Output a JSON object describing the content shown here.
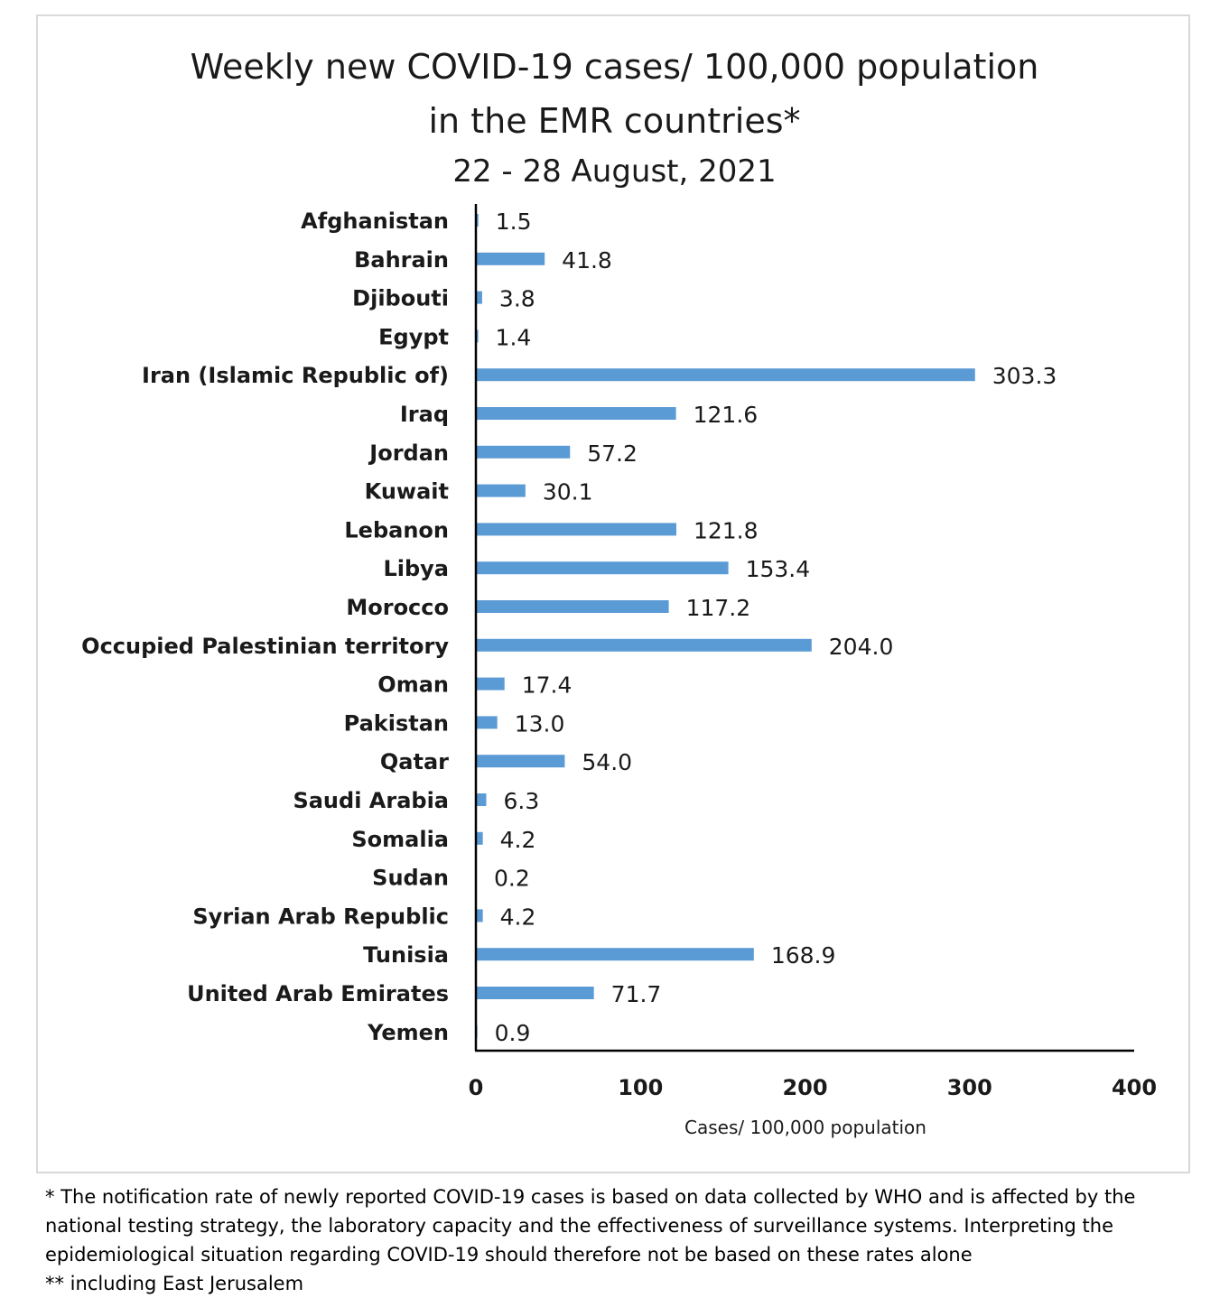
{
  "chart_data": {
    "type": "bar",
    "orientation": "horizontal",
    "title": "Weekly new COVID-19 cases/ 100,000 population",
    "title_line2": "in the EMR countries*",
    "subtitle": "22 - 28 August, 2021",
    "xlabel": "Cases/ 100,000 population",
    "ylabel": "",
    "xlim": [
      0,
      400
    ],
    "xticks": [
      "0",
      "100",
      "200",
      "300",
      "400"
    ],
    "bar_color": "#5b9bd5",
    "grid": false,
    "categories": [
      "Afghanistan",
      "Bahrain",
      "Djibouti",
      "Egypt",
      "Iran (Islamic Republic of)",
      "Iraq",
      "Jordan",
      "Kuwait",
      "Lebanon",
      "Libya",
      "Morocco",
      "Occupied Palestinian territory",
      "Oman",
      "Pakistan",
      "Qatar",
      "Saudi Arabia",
      "Somalia",
      "Sudan",
      "Syrian Arab Republic",
      "Tunisia",
      "United Arab Emirates",
      "Yemen"
    ],
    "values": [
      1.5,
      41.8,
      3.8,
      1.4,
      303.3,
      121.6,
      57.2,
      30.1,
      121.8,
      153.4,
      117.2,
      204.0,
      17.4,
      13.0,
      54.0,
      6.3,
      4.2,
      0.2,
      4.2,
      168.9,
      71.7,
      0.9
    ],
    "value_labels": [
      "1.5",
      "41.8",
      "3.8",
      "1.4",
      "303.3",
      "121.6",
      "57.2",
      "30.1",
      "121.8",
      "153.4",
      "117.2",
      "204.0",
      "17.4",
      "13.0",
      "54.0",
      "6.3",
      "4.2",
      "0.2",
      "4.2",
      "168.9",
      "71.7",
      "0.9"
    ]
  },
  "footnote": {
    "line1": "* The notification rate of newly reported COVID-19 cases is based on data collected by WHO and is affected by the national testing strategy, the laboratory capacity and the effectiveness of surveillance systems. Interpreting the epidemiological situation regarding COVID-19 should therefore not be based on these rates alone",
    "line2": "** including East Jerusalem"
  }
}
